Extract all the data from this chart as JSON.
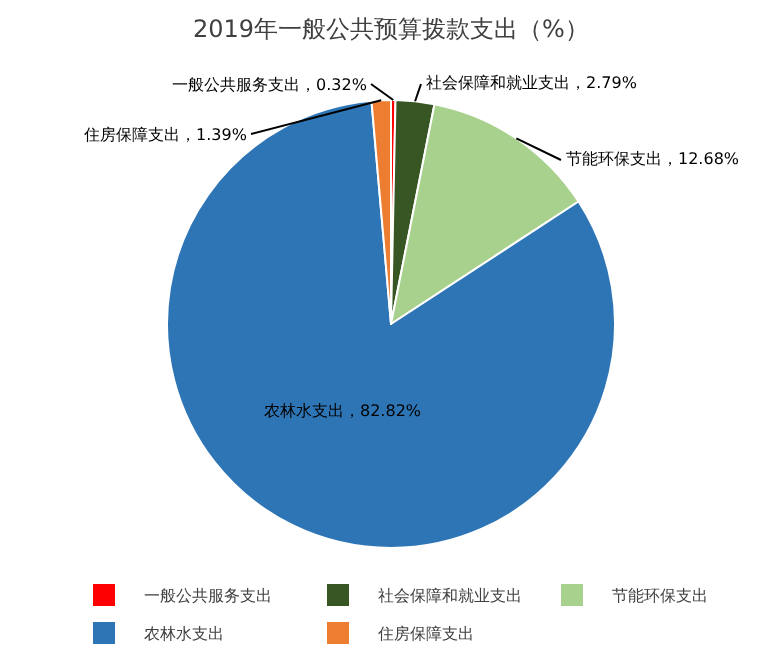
{
  "chart_data": {
    "type": "pie",
    "title": "2019年一般公共预算拨款支出（%）",
    "categories": [
      "一般公共服务支出",
      "社会保障和就业支出",
      "节能环保支出",
      "农林水支出",
      "住房保障支出"
    ],
    "values": [
      0.32,
      2.79,
      12.68,
      82.82,
      1.39
    ],
    "value_labels": [
      "一般公共服务支出，0.32%",
      "社会保障和就业支出，2.79%",
      "节能环保支出，12.68%",
      "农林水支出，82.82%",
      "住房保障支出，1.39%"
    ],
    "colors": [
      "#ff0000",
      "#375623",
      "#a9d18e",
      "#2e75b6",
      "#ed7d31"
    ],
    "legend": "bottom"
  }
}
